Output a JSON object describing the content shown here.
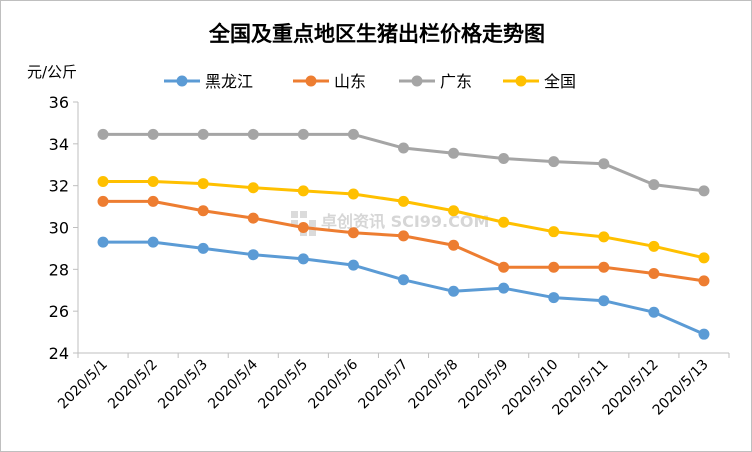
{
  "chart_data": {
    "type": "line",
    "title": "全国及重点地区生猪出栏价格走势图",
    "ylabel": "元/公斤",
    "xlabel": "",
    "ylim": [
      24,
      36
    ],
    "yticks": [
      24,
      26,
      28,
      30,
      32,
      34,
      36
    ],
    "grid": false,
    "legend_position": "top",
    "watermark": "卓创资讯 SCI99.COM",
    "categories": [
      "2020/5/1",
      "2020/5/2",
      "2020/5/3",
      "2020/5/4",
      "2020/5/5",
      "2020/5/6",
      "2020/5/7",
      "2020/5/8",
      "2020/5/9",
      "2020/5/10",
      "2020/5/11",
      "2020/5/12",
      "2020/5/13"
    ],
    "series": [
      {
        "name": "黑龙江",
        "color": "#5b9bd5",
        "values": [
          29.3,
          29.3,
          29.0,
          28.7,
          28.5,
          28.2,
          27.5,
          26.95,
          27.1,
          26.65,
          26.5,
          25.95,
          24.9
        ]
      },
      {
        "name": "山东",
        "color": "#ed7d31",
        "values": [
          31.25,
          31.25,
          30.8,
          30.45,
          30.0,
          29.75,
          29.6,
          29.15,
          28.1,
          28.1,
          28.1,
          27.8,
          27.45
        ]
      },
      {
        "name": "广东",
        "color": "#a5a5a5",
        "values": [
          34.45,
          34.45,
          34.45,
          34.45,
          34.45,
          34.45,
          33.8,
          33.55,
          33.3,
          33.15,
          33.05,
          32.05,
          31.75
        ]
      },
      {
        "name": "全国",
        "color": "#ffc000",
        "values": [
          32.2,
          32.2,
          32.1,
          31.9,
          31.75,
          31.6,
          31.25,
          30.8,
          30.25,
          29.8,
          29.55,
          29.1,
          28.55
        ]
      }
    ]
  }
}
